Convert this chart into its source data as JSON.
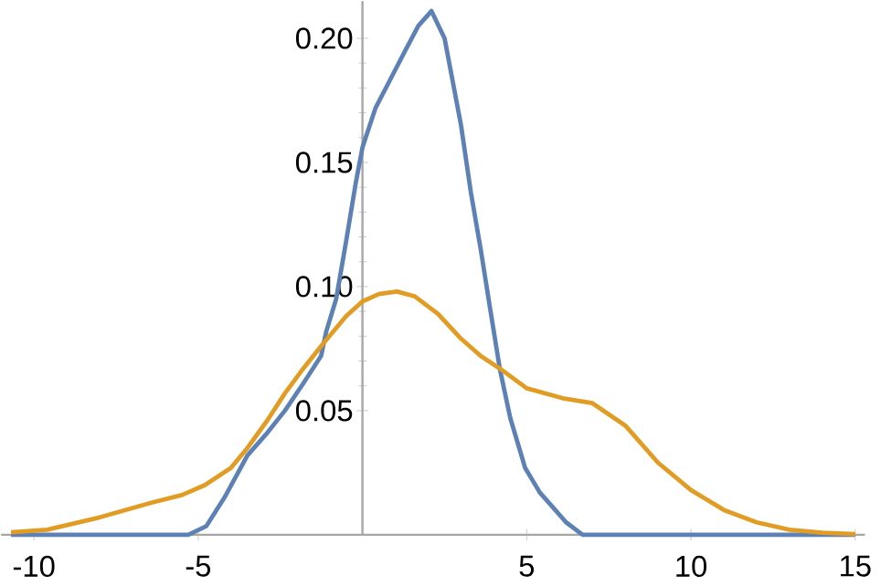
{
  "chart_data": {
    "type": "line",
    "xlim": [
      -11,
      15.3
    ],
    "ylim": [
      0,
      0.215
    ],
    "xticks": [
      -10,
      -5,
      5,
      10,
      15
    ],
    "yticks": [
      0.05,
      {
        "value": 0.1,
        "label": "0.10"
      },
      0.15,
      {
        "value": 0.2,
        "label": "0.20"
      }
    ],
    "grid": false,
    "marker": "none",
    "line_style": "solid",
    "series": [
      {
        "color": "#5e81b5",
        "x": [
          -10.7,
          -8,
          -6,
          -5.3,
          -4.75,
          -4.2,
          -3.5,
          -2.9,
          -2.36,
          -1.8,
          -1.26,
          -1.1,
          -0.8,
          -0.5,
          -0.2,
          0,
          0.4,
          0.87,
          1.3,
          1.7,
          2.1,
          2.5,
          3,
          3.3,
          3.6,
          3.9,
          4.18,
          4.5,
          4.95,
          5.4,
          5.8,
          6.2,
          6.7,
          10,
          15
        ],
        "values": [
          0,
          0,
          0,
          0,
          0.0035,
          0.015,
          0.032,
          0.041,
          0.05,
          0.061,
          0.072,
          0.082,
          0.095,
          0.118,
          0.142,
          0.156,
          0.172,
          0.184,
          0.195,
          0.205,
          0.211,
          0.2,
          0.165,
          0.138,
          0.115,
          0.09,
          0.067,
          0.047,
          0.027,
          0.017,
          0.011,
          0.005,
          0,
          0,
          0
        ]
      },
      {
        "color": "#e19c24",
        "x": [
          -10.7,
          -9.6,
          -8,
          -6.4,
          -5.5,
          -4.8,
          -4,
          -3.5,
          -2.9,
          -2.36,
          -1.8,
          -1.26,
          -0.5,
          0,
          0.5,
          1.05,
          1.6,
          2.3,
          3,
          3.6,
          4.18,
          5,
          6.1,
          7,
          8,
          9,
          10,
          11,
          12,
          13,
          14,
          15
        ],
        "values": [
          0.001,
          0.002,
          0.007,
          0.013,
          0.016,
          0.02,
          0.027,
          0.035,
          0.046,
          0.057,
          0.067,
          0.076,
          0.088,
          0.094,
          0.097,
          0.098,
          0.096,
          0.089,
          0.079,
          0.072,
          0.067,
          0.059,
          0.055,
          0.053,
          0.044,
          0.029,
          0.018,
          0.01,
          0.005,
          0.002,
          0.0008,
          0.0003
        ]
      }
    ]
  }
}
